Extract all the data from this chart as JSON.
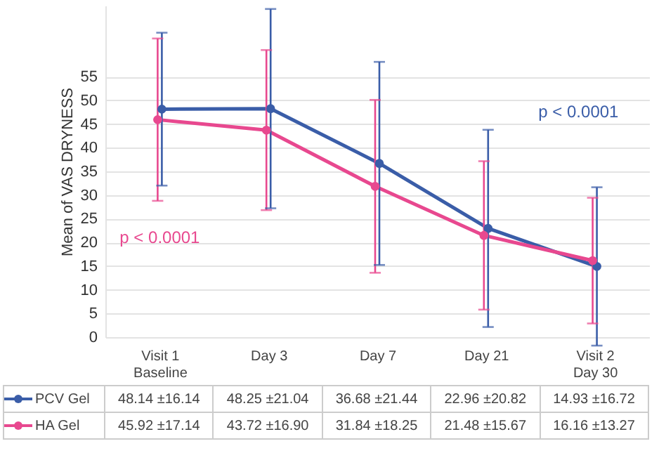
{
  "chart_data": {
    "type": "line",
    "ylabel": "Mean of  VAS DRYNESS",
    "categories": [
      "Visit 1\nBaseline",
      "Day 3",
      "Day 7",
      "Day 21",
      "Visit 2\nDay 30"
    ],
    "series": [
      {
        "name": "PCV Gel",
        "color": "#3a5da8",
        "values": [
          48.14,
          48.25,
          36.68,
          22.96,
          14.93
        ],
        "errors": [
          16.14,
          21.04,
          21.44,
          20.82,
          16.72
        ],
        "value_labels": [
          "48.14 ±16.14",
          "48.25 ±21.04",
          "36.68 ±21.44",
          "22.96 ±20.82",
          "14.93 ±16.72"
        ]
      },
      {
        "name": "HA Gel",
        "color": "#e8488f",
        "values": [
          45.92,
          43.72,
          31.84,
          21.48,
          16.16
        ],
        "errors": [
          17.14,
          16.9,
          18.25,
          15.67,
          13.27
        ],
        "value_labels": [
          "45.92 ±17.14",
          "43.72 ±16.90",
          "31.84 ±18.25",
          "21.48 ±15.67",
          "16.16 ±13.27"
        ]
      }
    ],
    "annotations": [
      "p < 0.0001",
      "p < 0.0001"
    ],
    "ylim": [
      0,
      70
    ],
    "yticks": [
      0,
      5,
      10,
      15,
      20,
      25,
      30,
      35,
      40,
      45,
      50,
      55
    ],
    "grid": "y",
    "marker": "circle",
    "line_style": "solid",
    "legend": "bottom"
  }
}
